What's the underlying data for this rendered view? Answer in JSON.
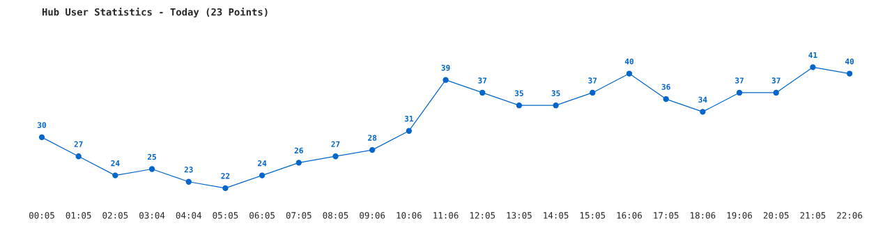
{
  "chart_data": {
    "type": "line",
    "title": "Hub User Statistics - Today (23 Points)",
    "categories": [
      "00:05",
      "01:05",
      "02:05",
      "03:04",
      "04:04",
      "05:05",
      "06:05",
      "07:05",
      "08:05",
      "09:06",
      "10:06",
      "11:06",
      "12:05",
      "13:05",
      "14:05",
      "15:05",
      "16:06",
      "17:05",
      "18:06",
      "19:06",
      "20:05",
      "21:05",
      "22:06"
    ],
    "series": [
      {
        "color": "#0066cc",
        "values": [
          30,
          27,
          24,
          25,
          23,
          22,
          24,
          26,
          27,
          28,
          31,
          39,
          37,
          35,
          35,
          37,
          40,
          36,
          34,
          37,
          37,
          41,
          40
        ]
      }
    ],
    "marker": "circle",
    "line_style": "solid",
    "data_labels": true,
    "grid": false,
    "legend": false,
    "tick_labels": "x"
  }
}
